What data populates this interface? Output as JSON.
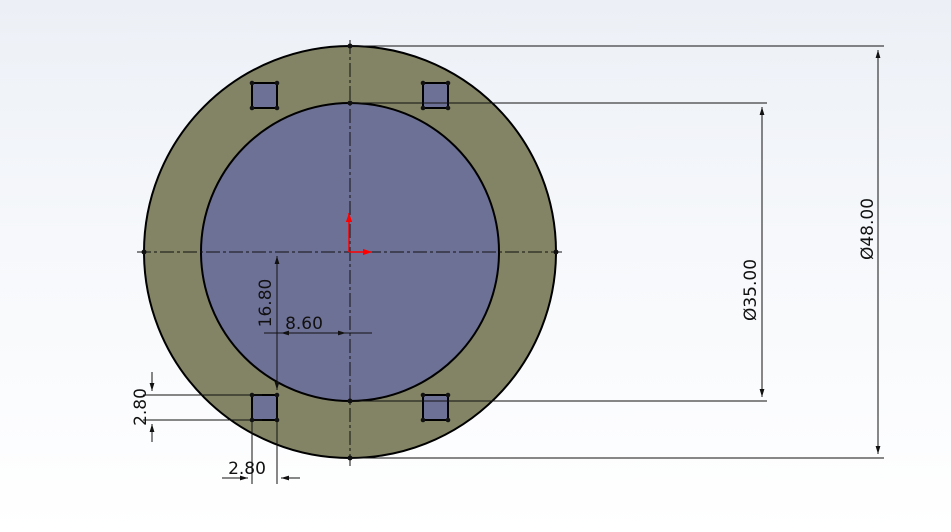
{
  "colors": {
    "ring_fill": "#838465",
    "bore_fill": "#6e7196",
    "slot_fill": "#6e7196",
    "origin_arrow": "#ff0000",
    "line": "#111111"
  },
  "dimensions": {
    "outer_diameter": "Ø48.00",
    "inner_diameter": "Ø35.00",
    "slot_vertical_offset": "16.80",
    "slot_horizontal_offset": "8.60",
    "slot_height": "2.80",
    "slot_width": "2.80"
  }
}
